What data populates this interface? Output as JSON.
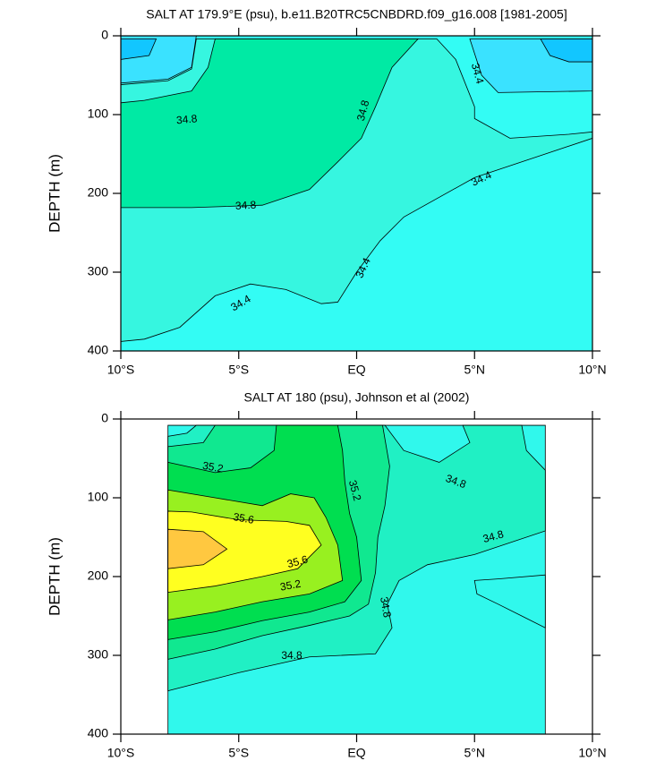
{
  "chart_data": [
    {
      "type": "contour",
      "title": "SALT AT 179.9°E (psu), b.e11.B20TRC5CNBDRD.f09_g16.008 [1981-2005]",
      "y_label": "DEPTH (m)",
      "xlim": [
        -10,
        10
      ],
      "xticks": [
        {
          "value": -10,
          "label": "10°S"
        },
        {
          "value": -5,
          "label": "5°S"
        },
        {
          "value": 0,
          "label": "EQ"
        },
        {
          "value": 5,
          "label": "5°N"
        },
        {
          "value": 10,
          "label": "10°N"
        }
      ],
      "ylim": [
        0,
        400
      ],
      "y_inverted": true,
      "yticks": [
        0,
        100,
        200,
        300,
        400
      ],
      "levels": [
        34.2,
        34.4,
        34.6,
        34.8
      ],
      "colors": [
        "#12c6ff",
        "#3ae2ff",
        "#33fcf4",
        "#36f6e0",
        "#00eaa4"
      ],
      "contour_labels": [
        34.8,
        34.8,
        34.8,
        34.4,
        34.4,
        34.4,
        34.4
      ]
    },
    {
      "type": "contour",
      "title": "SALT AT 180 (psu), Johnson et al (2002)",
      "y_label": "DEPTH (m)",
      "xlim": [
        -10,
        10
      ],
      "xticks": [
        {
          "value": -10,
          "label": "10°S"
        },
        {
          "value": -5,
          "label": "5°S"
        },
        {
          "value": 0,
          "label": "EQ"
        },
        {
          "value": 5,
          "label": "5°N"
        },
        {
          "value": 10,
          "label": "10°N"
        }
      ],
      "ylim": [
        0,
        400
      ],
      "y_inverted": true,
      "yticks": [
        0,
        100,
        200,
        300,
        400
      ],
      "levels": [
        34.8,
        35.0,
        35.2,
        35.4,
        35.6,
        35.8
      ],
      "colors": [
        "#30f8ec",
        "#20f0c4",
        "#10e890",
        "#00de50",
        "#98f020",
        "#ffff20",
        "#ffc840"
      ],
      "contour_labels": [
        35.2,
        35.2,
        35.2,
        35.6,
        35.6,
        34.8,
        34.8,
        34.8,
        34.8
      ]
    }
  ]
}
